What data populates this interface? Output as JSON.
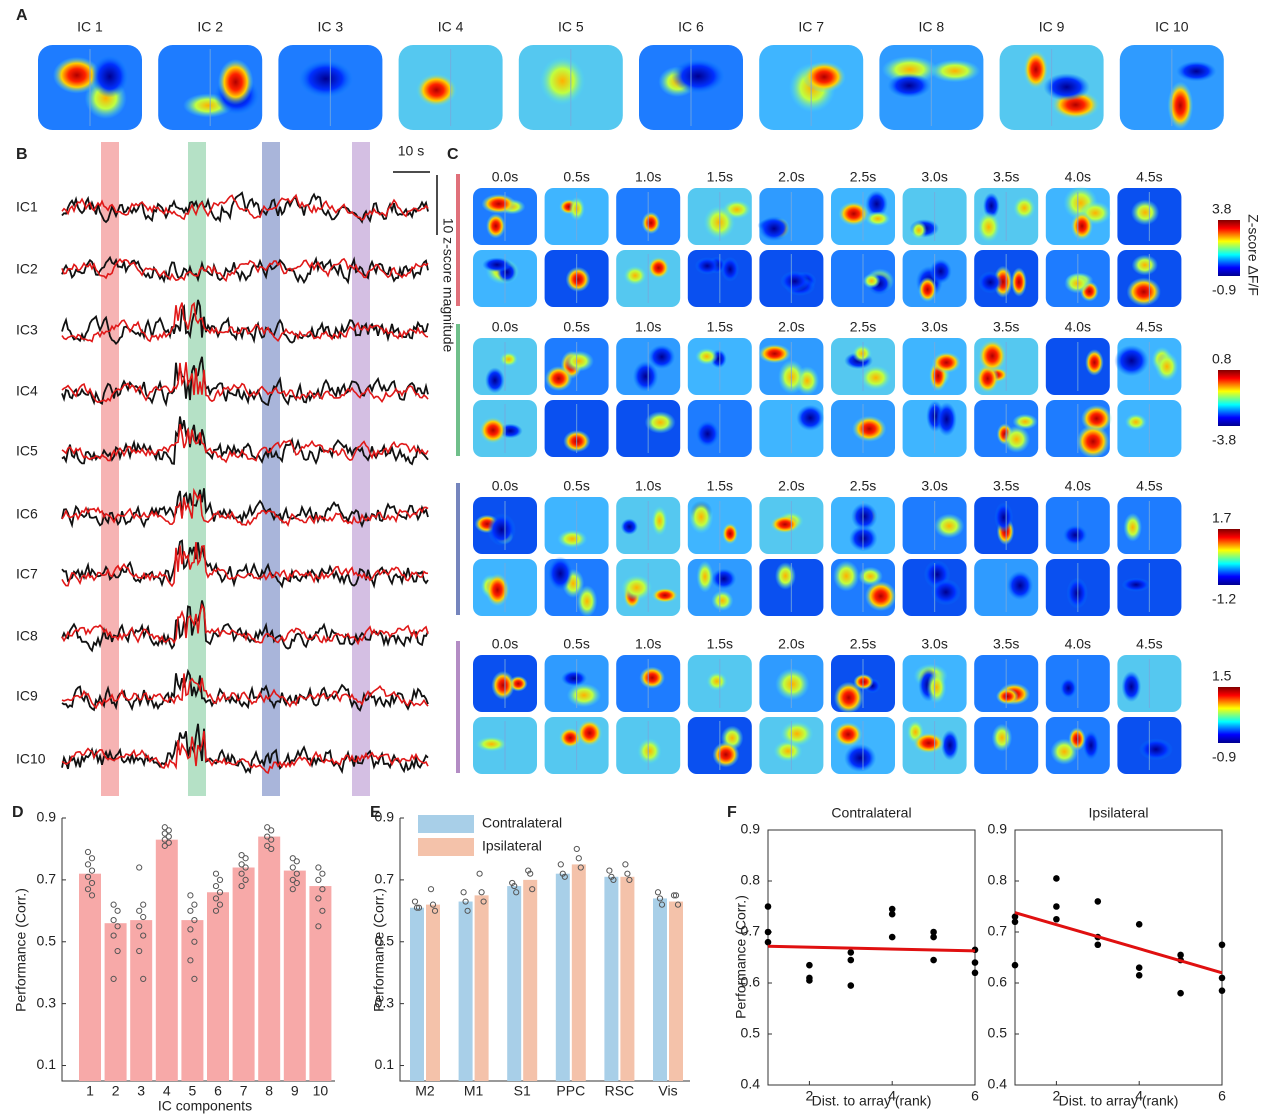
{
  "panel_labels": [
    "A",
    "B",
    "C",
    "D",
    "E",
    "F"
  ],
  "panel_a": {
    "titles": [
      "IC 1",
      "IC 2",
      "IC 3",
      "IC 4",
      "IC 5",
      "IC 6",
      "IC 7",
      "IC 8",
      "IC 9",
      "IC 10"
    ]
  },
  "panel_b": {
    "trace_labels": [
      "IC1",
      "IC2",
      "IC3",
      "IC4",
      "IC5",
      "IC6",
      "IC7",
      "IC8",
      "IC9",
      "IC10"
    ],
    "time_scale": "10 s",
    "magnitude_scale": "10 z-score magnitude"
  },
  "panel_c": {
    "time_labels": [
      "0.0s",
      "0.5s",
      "1.0s",
      "1.5s",
      "2.0s",
      "2.5s",
      "3.0s",
      "3.5s",
      "4.0s",
      "4.5s"
    ],
    "colorbar_title": "Z-score ΔF/F",
    "colorbars": [
      {
        "max": 3.8,
        "min": -0.9
      },
      {
        "max": 0.8,
        "min": -3.8
      },
      {
        "max": 1.7,
        "min": -1.2
      },
      {
        "max": 1.5,
        "min": -0.9
      }
    ]
  },
  "chart_data": [
    {
      "type": "bar",
      "panel": "D",
      "y_label": "Performance (Corr.)",
      "x_label": "IC components",
      "categories": [
        "1",
        "2",
        "3",
        "4",
        "5",
        "6",
        "7",
        "8",
        "9",
        "10"
      ],
      "values": [
        0.72,
        0.56,
        0.57,
        0.83,
        0.57,
        0.66,
        0.74,
        0.84,
        0.73,
        0.68
      ],
      "color": "#f7a9a8",
      "points": [
        [
          0.79,
          0.77,
          0.75,
          0.73,
          0.71,
          0.69,
          0.67,
          0.65
        ],
        [
          0.62,
          0.6,
          0.57,
          0.55,
          0.52,
          0.47,
          0.38
        ],
        [
          0.74,
          0.62,
          0.6,
          0.58,
          0.55,
          0.52,
          0.47,
          0.38
        ],
        [
          0.87,
          0.86,
          0.85,
          0.84,
          0.83,
          0.82,
          0.81
        ],
        [
          0.65,
          0.62,
          0.6,
          0.57,
          0.54,
          0.5,
          0.44,
          0.38
        ],
        [
          0.72,
          0.7,
          0.68,
          0.66,
          0.64,
          0.62,
          0.6
        ],
        [
          0.78,
          0.77,
          0.75,
          0.74,
          0.72,
          0.7,
          0.68
        ],
        [
          0.87,
          0.86,
          0.84,
          0.83,
          0.81,
          0.8
        ],
        [
          0.77,
          0.76,
          0.74,
          0.72,
          0.7,
          0.69,
          0.67
        ],
        [
          0.74,
          0.72,
          0.7,
          0.67,
          0.64,
          0.6,
          0.55
        ]
      ],
      "ylim": [
        0.05,
        0.9
      ],
      "yticks": [
        0.1,
        0.3,
        0.5,
        0.7,
        0.9
      ]
    },
    {
      "type": "grouped-bar",
      "panel": "E",
      "y_label": "Performance (Corr.)",
      "categories": [
        "M2",
        "M1",
        "S1",
        "PPC",
        "RSC",
        "Vis"
      ],
      "series": [
        {
          "name": "Contralateral",
          "color": "#a8cfe8",
          "values": [
            0.61,
            0.63,
            0.68,
            0.72,
            0.71,
            0.64
          ],
          "points": [
            [
              0.63,
              0.61,
              0.61
            ],
            [
              0.66,
              0.63,
              0.6
            ],
            [
              0.69,
              0.68,
              0.66
            ],
            [
              0.75,
              0.72,
              0.71
            ],
            [
              0.73,
              0.71,
              0.7
            ],
            [
              0.66,
              0.64,
              0.62
            ]
          ]
        },
        {
          "name": "Ipsilateral",
          "color": "#f4c2aa",
          "values": [
            0.62,
            0.65,
            0.7,
            0.75,
            0.71,
            0.63
          ],
          "points": [
            [
              0.67,
              0.62,
              0.6
            ],
            [
              0.72,
              0.66,
              0.63
            ],
            [
              0.73,
              0.72,
              0.67
            ],
            [
              0.8,
              0.77,
              0.74
            ],
            [
              0.75,
              0.72,
              0.7
            ],
            [
              0.65,
              0.65,
              0.62
            ]
          ]
        }
      ],
      "ylim": [
        0.05,
        0.9
      ],
      "yticks": [
        0.1,
        0.3,
        0.5,
        0.7,
        0.9
      ],
      "legend": "top-left"
    },
    {
      "type": "scatter",
      "panel": "F",
      "title": "Contralateral",
      "y_label": "Performance (Corr.)",
      "x_label": "Dist. to array (rank)",
      "x": [
        1,
        1,
        1,
        2,
        2,
        2,
        3,
        3,
        3,
        4,
        4,
        4,
        5,
        5,
        5,
        6,
        6,
        6
      ],
      "values": [
        0.75,
        0.7,
        0.68,
        0.635,
        0.61,
        0.605,
        0.66,
        0.645,
        0.595,
        0.745,
        0.735,
        0.69,
        0.7,
        0.69,
        0.645,
        0.665,
        0.64,
        0.62
      ],
      "color": "#000000",
      "fit": {
        "x": [
          1,
          6
        ],
        "values": [
          0.672,
          0.663
        ],
        "color": "#e01010"
      },
      "xlim": [
        1,
        6
      ],
      "xticks": [
        2,
        4,
        6
      ],
      "ylim": [
        0.4,
        0.9
      ],
      "yticks": [
        0.4,
        0.5,
        0.6,
        0.7,
        0.8,
        0.9
      ]
    },
    {
      "type": "scatter",
      "panel": "F",
      "title": "Ipsilateral",
      "x_label": "Dist. to array (rank)",
      "x": [
        1,
        1,
        1,
        2,
        2,
        2,
        3,
        3,
        3,
        4,
        4,
        4,
        5,
        5,
        5,
        6,
        6,
        6
      ],
      "values": [
        0.73,
        0.72,
        0.635,
        0.805,
        0.75,
        0.725,
        0.76,
        0.69,
        0.675,
        0.715,
        0.63,
        0.615,
        0.655,
        0.645,
        0.58,
        0.675,
        0.61,
        0.585
      ],
      "color": "#000000",
      "fit": {
        "x": [
          1,
          6
        ],
        "values": [
          0.738,
          0.62
        ],
        "color": "#e01010"
      },
      "xlim": [
        1,
        6
      ],
      "xticks": [
        2,
        4,
        6
      ],
      "ylim": [
        0.4,
        0.9
      ],
      "yticks": [
        0.4,
        0.5,
        0.6,
        0.7,
        0.8,
        0.9
      ]
    }
  ]
}
